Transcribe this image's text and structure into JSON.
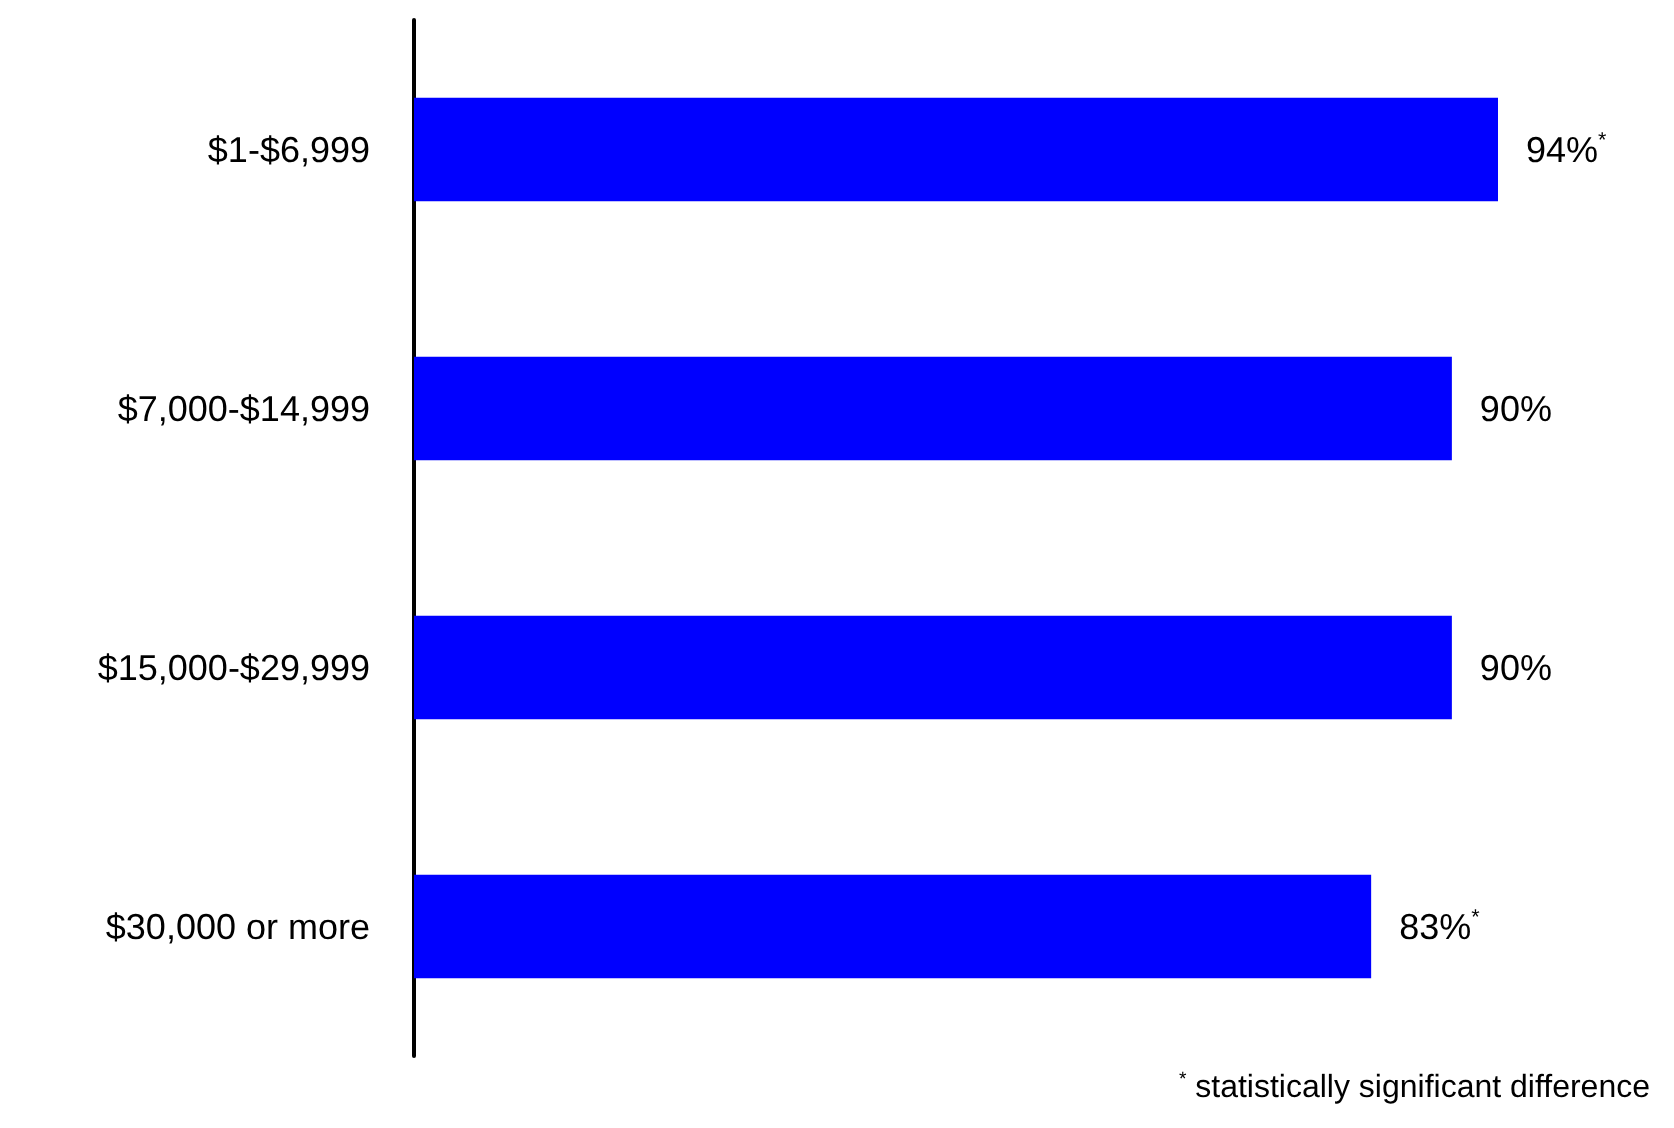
{
  "chart_data": {
    "type": "bar",
    "orientation": "horizontal",
    "categories": [
      "$1-$6,999",
      "$7,000-$14,999",
      "$15,000-$29,999",
      "$30,000 or more"
    ],
    "values": [
      94,
      90,
      90,
      83
    ],
    "color": "#0000ff",
    "value_labels": [
      "94%$^{*}$",
      "90%",
      "90%",
      "83%$^{*}$"
    ],
    "tick_labels": "y",
    "grid": false,
    "annotations": [
      "$^{*}$ statistically significant difference"
    ]
  }
}
